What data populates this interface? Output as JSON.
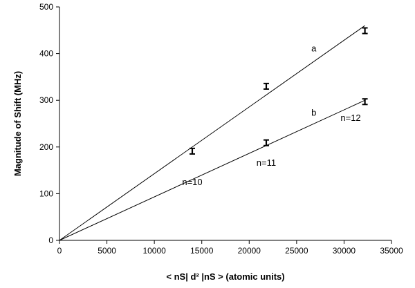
{
  "chart_data": {
    "type": "scatter",
    "title": "",
    "xlabel": "< nS| d² |nS > (atomic units)",
    "ylabel": "Magnitude of Shift (MHz)",
    "xlim": [
      0,
      35000
    ],
    "ylim": [
      0,
      500
    ],
    "x_ticks": [
      0,
      5000,
      10000,
      15000,
      20000,
      25000,
      30000,
      35000
    ],
    "y_ticks": [
      0,
      100,
      200,
      300,
      400,
      500
    ],
    "grid": false,
    "legend": "none",
    "series": [
      {
        "name": "a",
        "line_end": [
          32200,
          460
        ],
        "points": [
          {
            "x": 14000,
            "y": 191,
            "err": 12
          },
          {
            "x": 21800,
            "y": 330,
            "err": 12
          },
          {
            "x": 32200,
            "y": 449,
            "err": 12
          }
        ]
      },
      {
        "name": "b",
        "line_end": [
          32200,
          300
        ],
        "points": [
          {
            "x": 21800,
            "y": 209,
            "err": 12
          },
          {
            "x": 32200,
            "y": 297,
            "err": 12
          }
        ]
      }
    ],
    "annotations": [
      {
        "text": "n=10",
        "x": 14000,
        "y": 118
      },
      {
        "text": "n=11",
        "x": 21800,
        "y": 160
      },
      {
        "text": "n=12",
        "x": 30700,
        "y": 256
      }
    ]
  }
}
